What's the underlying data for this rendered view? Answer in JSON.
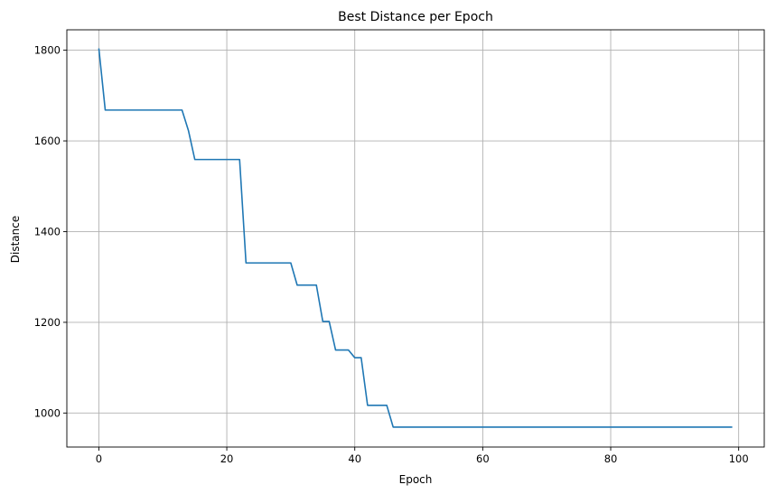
{
  "chart_data": {
    "type": "line",
    "title": "Best Distance per Epoch",
    "xlabel": "Epoch",
    "ylabel": "Distance",
    "xlim": [
      -5,
      104
    ],
    "ylim": [
      925,
      1845
    ],
    "xticks": [
      0,
      20,
      40,
      60,
      80,
      100
    ],
    "yticks": [
      1000,
      1200,
      1400,
      1600,
      1800
    ],
    "grid": true,
    "colors": {
      "line": "#1f77b4",
      "grid": "#b0b0b0"
    },
    "series": [
      {
        "x": [
          0,
          1,
          2,
          3,
          4,
          5,
          6,
          7,
          8,
          9,
          10,
          11,
          12,
          13,
          14,
          15,
          16,
          17,
          18,
          19,
          20,
          21,
          22,
          23,
          24,
          25,
          26,
          27,
          28,
          29,
          30,
          31,
          32,
          33,
          34,
          35,
          36,
          37,
          38,
          39,
          40,
          41,
          42,
          43,
          44,
          45,
          46,
          47,
          48,
          49,
          50,
          51,
          52,
          53,
          54,
          55,
          56,
          57,
          58,
          59,
          60,
          61,
          62,
          63,
          64,
          65,
          66,
          67,
          68,
          69,
          70,
          71,
          72,
          73,
          74,
          75,
          76,
          77,
          78,
          79,
          80,
          81,
          82,
          83,
          84,
          85,
          86,
          87,
          88,
          89,
          90,
          91,
          92,
          93,
          94,
          95,
          96,
          97,
          98,
          99
        ],
        "y": [
          1804,
          1668,
          1668,
          1668,
          1668,
          1668,
          1668,
          1668,
          1668,
          1668,
          1668,
          1668,
          1668,
          1668,
          1623,
          1559,
          1559,
          1559,
          1559,
          1559,
          1559,
          1559,
          1559,
          1331,
          1331,
          1331,
          1331,
          1331,
          1331,
          1331,
          1331,
          1282,
          1282,
          1282,
          1282,
          1202,
          1202,
          1139,
          1139,
          1139,
          1122,
          1122,
          1017,
          1017,
          1017,
          1017,
          969,
          969,
          969,
          969,
          969,
          969,
          969,
          969,
          969,
          969,
          969,
          969,
          969,
          969,
          969,
          969,
          969,
          969,
          969,
          969,
          969,
          969,
          969,
          969,
          969,
          969,
          969,
          969,
          969,
          969,
          969,
          969,
          969,
          969,
          969,
          969,
          969,
          969,
          969,
          969,
          969,
          969,
          969,
          969,
          969,
          969,
          969,
          969,
          969,
          969,
          969,
          969,
          969,
          969
        ]
      }
    ]
  }
}
